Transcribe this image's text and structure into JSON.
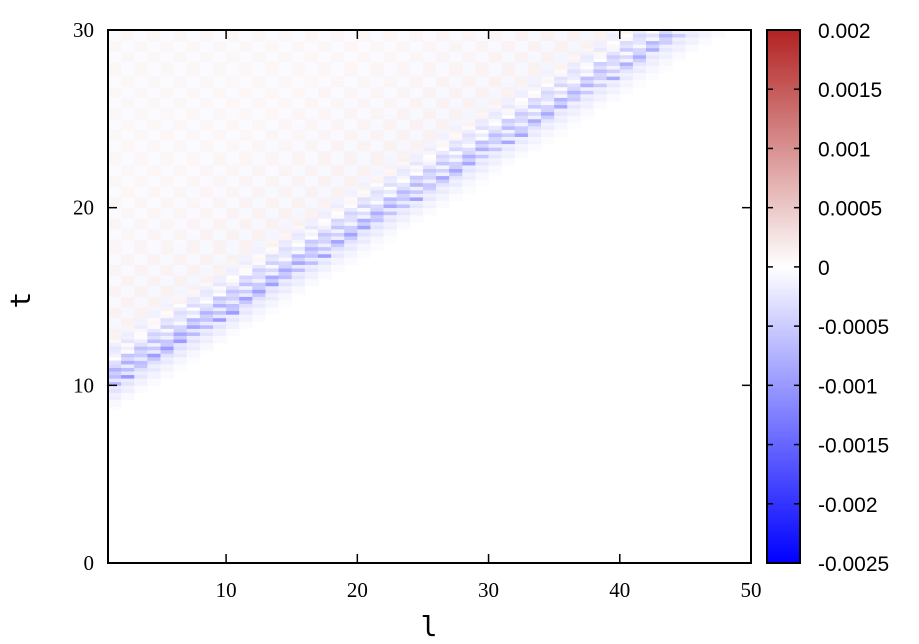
{
  "chart_data": {
    "type": "heatmap",
    "title": "",
    "xlabel": "l",
    "ylabel": "t",
    "xlim": [
      1,
      50
    ],
    "ylim": [
      0,
      30
    ],
    "x_ticks": [
      10,
      20,
      30,
      40,
      50
    ],
    "y_ticks": [
      0,
      10,
      20,
      30
    ],
    "grid": false,
    "colorbar": {
      "range": [
        -0.0025,
        0.002
      ],
      "ticks": [
        0.002,
        0.0015,
        0.001,
        0.0005,
        0,
        -0.0005,
        -0.001,
        -0.0015,
        -0.002,
        -0.0025
      ],
      "tick_labels": [
        "0.002",
        "0.0015",
        "0.001",
        "0.0005",
        "0",
        "-0.0005",
        "-0.001",
        "-0.0015",
        "-0.002",
        "-0.0025"
      ],
      "colors": {
        "low": "#0000ff",
        "mid": "#ffffff",
        "high": "#b22222"
      }
    },
    "grid_size": {
      "l_values": 50,
      "t_step": 0.2
    },
    "features": [
      {
        "description_value": "light-cone front",
        "t_at_l1": 10,
        "t_at_l45": 30
      },
      {
        "description_value": "band amplitude near front",
        "value_near_l1": -0.0009,
        "value_near_l40": -0.0007
      },
      {
        "description_value": "checkerboard interior amplitude",
        "value": 0.0002
      }
    ]
  }
}
